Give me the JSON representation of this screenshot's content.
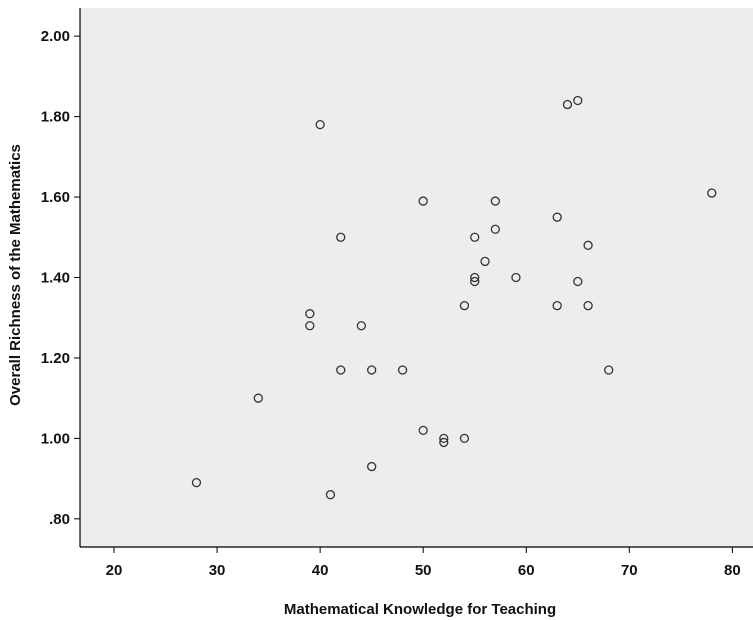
{
  "chart_data": {
    "type": "scatter",
    "title": "",
    "xlabel": "Mathematical Knowledge for Teaching",
    "ylabel": "Overall Richness of the Mathematics",
    "xlim": [
      16.7,
      82
    ],
    "ylim": [
      0.73,
      2.07
    ],
    "x_ticks": [
      20,
      30,
      40,
      50,
      60,
      70,
      80
    ],
    "x_tick_labels": [
      "20",
      "30",
      "40",
      "50",
      "60",
      "70",
      "80"
    ],
    "y_ticks": [
      0.8,
      1.0,
      1.2,
      1.4,
      1.6,
      1.8,
      2.0
    ],
    "y_tick_labels": [
      ".80",
      "1.00",
      "1.20",
      "1.40",
      "1.60",
      "1.80",
      "2.00"
    ],
    "grid": false,
    "colors": {
      "plot_background": "#ededed",
      "marker_stroke": "#333333",
      "axis": "#000000"
    },
    "points": [
      [
        28,
        0.89
      ],
      [
        34,
        1.1
      ],
      [
        39,
        1.31
      ],
      [
        39,
        1.28
      ],
      [
        40,
        1.78
      ],
      [
        41,
        0.86
      ],
      [
        42,
        1.5
      ],
      [
        42,
        1.17
      ],
      [
        44,
        1.28
      ],
      [
        45,
        1.17
      ],
      [
        45,
        0.93
      ],
      [
        48,
        1.17
      ],
      [
        50,
        1.59
      ],
      [
        50,
        1.02
      ],
      [
        52,
        1.0
      ],
      [
        52,
        0.99
      ],
      [
        54,
        1.33
      ],
      [
        54,
        1.0
      ],
      [
        55,
        1.5
      ],
      [
        55,
        1.4
      ],
      [
        55,
        1.39
      ],
      [
        56,
        1.44
      ],
      [
        57,
        1.59
      ],
      [
        57,
        1.52
      ],
      [
        59,
        1.4
      ],
      [
        63,
        1.55
      ],
      [
        63,
        1.33
      ],
      [
        64,
        1.83
      ],
      [
        65,
        1.84
      ],
      [
        65,
        1.39
      ],
      [
        66,
        1.48
      ],
      [
        66,
        1.33
      ],
      [
        68,
        1.17
      ],
      [
        78,
        1.61
      ]
    ]
  }
}
